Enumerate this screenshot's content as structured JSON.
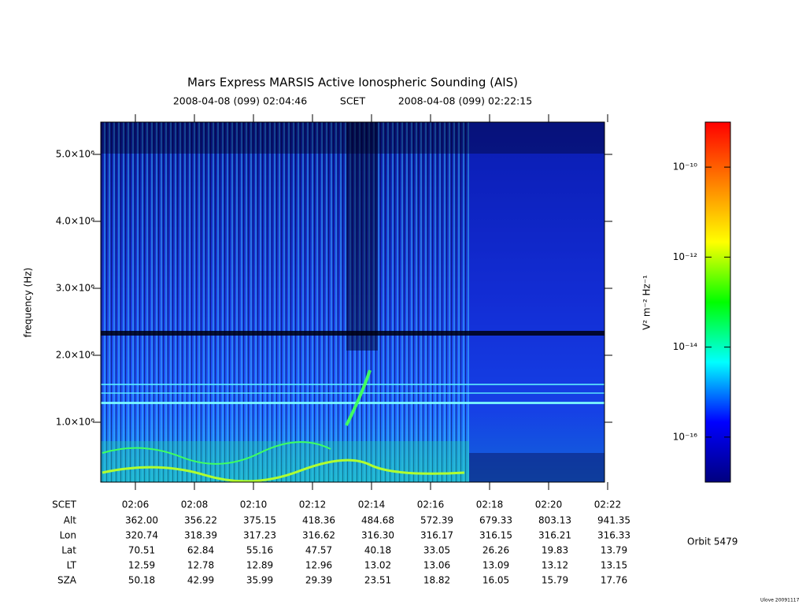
{
  "chart_data": {
    "type": "spectrogram",
    "title": "Mars Express MARSIS Active Ionospheric Sounding (AIS)",
    "subtitle_start": "2008-04-08 (099) 02:04:46",
    "subtitle_frame": "SCET",
    "subtitle_end": "2008-04-08 (099) 02:22:15",
    "y_label": "frequency (Hz)",
    "ylim": [
      106000,
      5482000
    ],
    "yticks": [
      {
        "value": 1000000,
        "label": "1.0×10⁶"
      },
      {
        "value": 2000000,
        "label": "2.0×10⁶"
      },
      {
        "value": 3000000,
        "label": "3.0×10⁶"
      },
      {
        "value": 4000000,
        "label": "4.0×10⁶"
      },
      {
        "value": 5000000,
        "label": "5.0×10⁶"
      }
    ],
    "categories": [
      "02:06",
      "02:08",
      "02:10",
      "02:12",
      "02:14",
      "02:16",
      "02:18",
      "02:20",
      "02:22"
    ],
    "ephemeris": {
      "row_labels": [
        "SCET",
        "Alt",
        "Lon",
        "Lat",
        "LT",
        "SZA"
      ],
      "rows": [
        [
          "362.00",
          "356.22",
          "375.15",
          "418.36",
          "484.68",
          "572.39",
          "679.33",
          "803.13",
          "941.35"
        ],
        [
          "320.74",
          "318.39",
          "317.23",
          "316.62",
          "316.30",
          "316.17",
          "316.15",
          "316.21",
          "316.33"
        ],
        [
          "70.51",
          "62.84",
          "55.16",
          "47.57",
          "40.18",
          "33.05",
          "26.26",
          "19.83",
          "13.79"
        ],
        [
          "12.59",
          "12.78",
          "12.89",
          "12.96",
          "13.02",
          "13.06",
          "13.09",
          "13.12",
          "13.15"
        ],
        [
          "50.18",
          "42.99",
          "35.99",
          "29.39",
          "23.51",
          "18.82",
          "16.05",
          "15.79",
          "17.76"
        ]
      ]
    },
    "colorbar": {
      "label": "V² m⁻² Hz⁻¹",
      "log_scale": true,
      "clim": [
        1e-17,
        1e-09
      ],
      "cticks": [
        {
          "value": 1e-10,
          "label": "10⁻¹⁰"
        },
        {
          "value": 1e-12,
          "label": "10⁻¹²"
        },
        {
          "value": 1e-14,
          "label": "10⁻¹⁴"
        },
        {
          "value": 1e-16,
          "label": "10⁻¹⁶"
        }
      ],
      "colors": [
        "#00007f",
        "#0000ff",
        "#00ffff",
        "#00ff00",
        "#ffff00",
        "#ff7f00",
        "#ff0000"
      ]
    },
    "orbit": "Orbit 5479",
    "credit": "Ulove 20091117"
  }
}
